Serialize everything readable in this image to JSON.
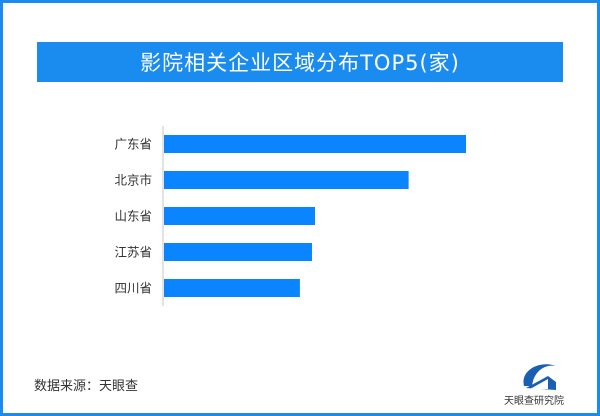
{
  "chart_data": {
    "type": "bar",
    "orientation": "horizontal",
    "title": "影院相关企业区域分布TOP5(家)",
    "categories": [
      "广东省",
      "北京市",
      "山东省",
      "江苏省",
      "四川省"
    ],
    "values": [
      100,
      81,
      50,
      49,
      45
    ],
    "xlim": [
      0,
      100
    ],
    "grid": false,
    "bar_color": "#0a84ff"
  },
  "footer": {
    "source": "数据来源：天眼查",
    "logo_text": "天眼查研究院"
  },
  "colors": {
    "accent": "#1a8cf0"
  }
}
